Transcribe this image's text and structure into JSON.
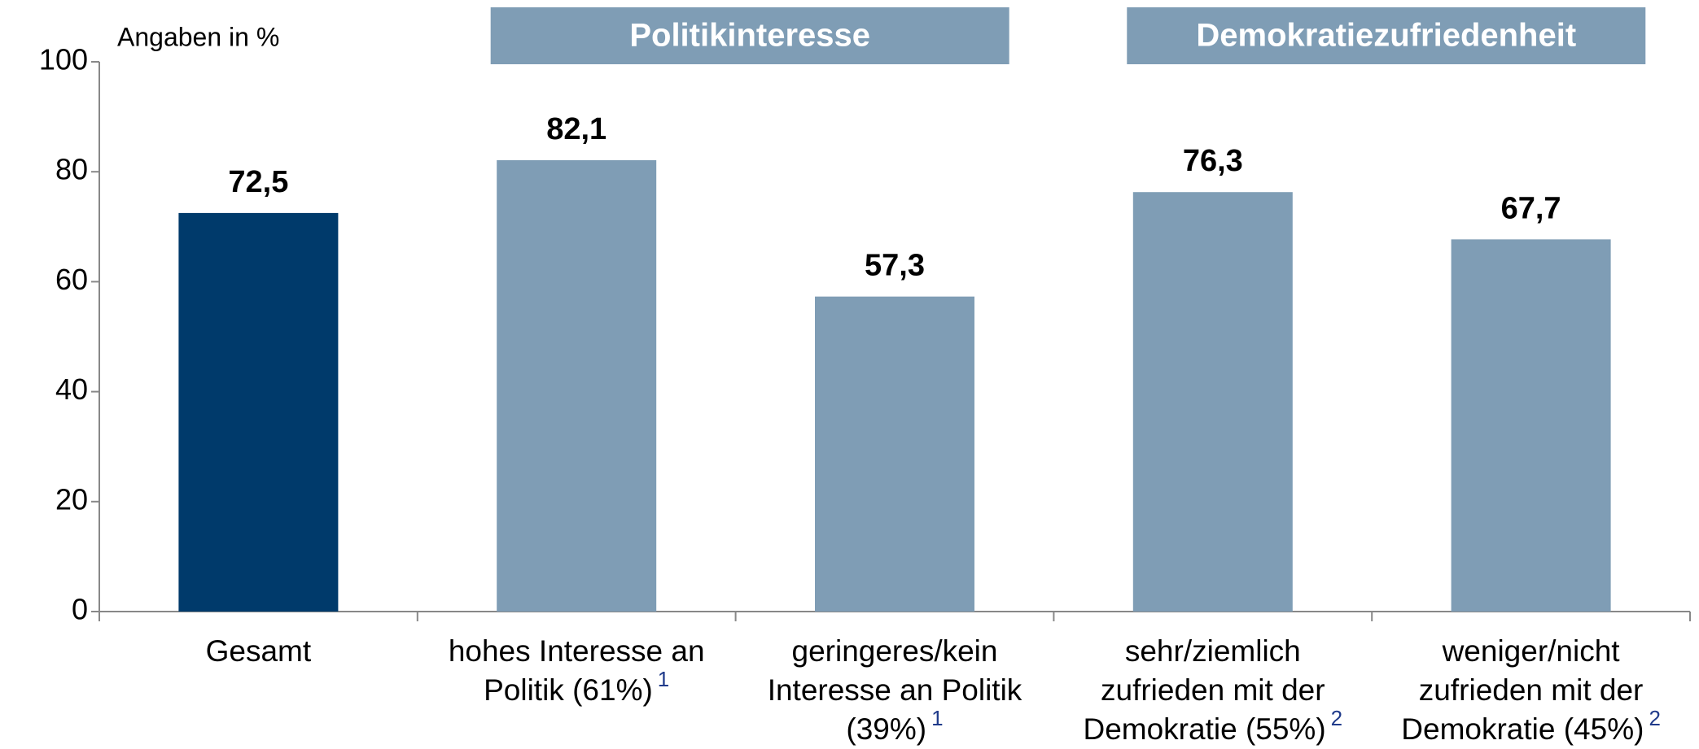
{
  "chart_data": {
    "type": "bar",
    "unit_label": "Angaben in %",
    "groups": [
      {
        "label": "Politikinteresse",
        "categories": [
          1,
          2
        ]
      },
      {
        "label": "Demokratiezufriedenheit",
        "categories": [
          3,
          4
        ]
      }
    ],
    "categories": [
      [
        "Gesamt"
      ],
      [
        "hohes Interesse an",
        "Politik (61%)"
      ],
      [
        "geringeres/kein",
        "Interesse an Politik",
        "(39%)"
      ],
      [
        "sehr/ziemlich",
        "zufrieden mit der",
        "Demokratie (55%)"
      ],
      [
        "weniger/nicht",
        "zufrieden mit der",
        "Demokratie (45%)"
      ]
    ],
    "category_notes": [
      null,
      "1",
      "1",
      "2",
      "2"
    ],
    "values": [
      72.5,
      82.1,
      57.3,
      76.3,
      67.7
    ],
    "value_labels": [
      "72,5",
      "82,1",
      "57,3",
      "76,3",
      "67,7"
    ],
    "colors": [
      "#003a6b",
      "#7f9db5",
      "#7f9db5",
      "#7f9db5",
      "#7f9db5"
    ],
    "group_color": "#7f9db5",
    "ylim": [
      0,
      100
    ],
    "yticks": [
      0,
      20,
      40,
      60,
      80,
      100
    ],
    "grid": false
  }
}
